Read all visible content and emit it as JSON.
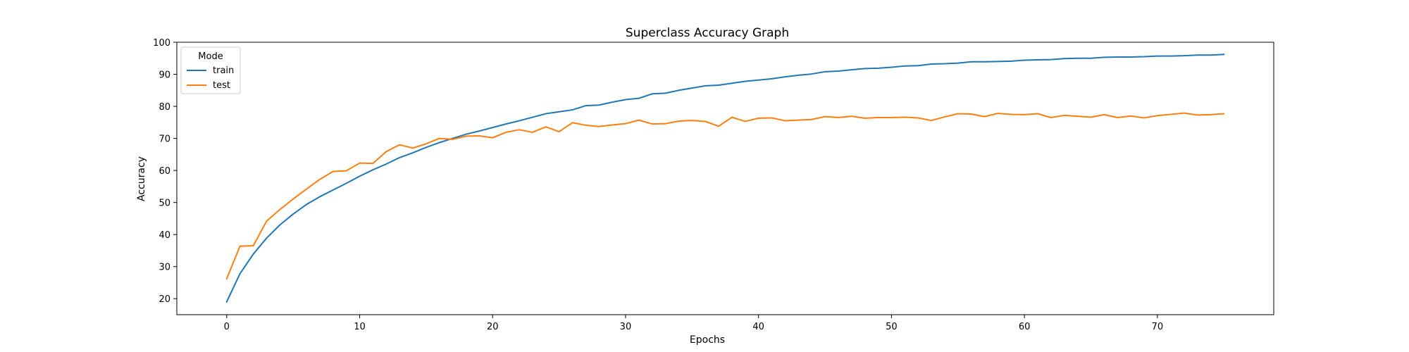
{
  "chart_data": {
    "type": "line",
    "title": "Superclass Accuracy Graph",
    "xlabel": "Epochs",
    "ylabel": "Accuracy",
    "xlim": [
      -3.75,
      78.75
    ],
    "ylim": [
      15,
      100
    ],
    "xticks": [
      0,
      10,
      20,
      30,
      40,
      50,
      60,
      70
    ],
    "yticks": [
      20,
      30,
      40,
      50,
      60,
      70,
      80,
      90,
      100
    ],
    "grid": false,
    "legend": {
      "title": "Mode",
      "placement": "top-left"
    },
    "x": [
      0,
      1,
      2,
      3,
      4,
      5,
      6,
      7,
      8,
      9,
      10,
      11,
      12,
      13,
      14,
      15,
      16,
      17,
      18,
      19,
      20,
      21,
      22,
      23,
      24,
      25,
      26,
      27,
      28,
      29,
      30,
      31,
      32,
      33,
      34,
      35,
      36,
      37,
      38,
      39,
      40,
      41,
      42,
      43,
      44,
      45,
      46,
      47,
      48,
      49,
      50,
      51,
      52,
      53,
      54,
      55,
      56,
      57,
      58,
      59,
      60,
      61,
      62,
      63,
      64,
      65,
      66,
      67,
      68,
      69,
      70,
      71,
      72,
      73,
      74,
      75
    ],
    "series": [
      {
        "name": "train",
        "color": "#1f77b4",
        "values": [
          19.0,
          27.8,
          33.9,
          38.9,
          43.0,
          46.4,
          49.4,
          51.8,
          53.9,
          56.0,
          58.2,
          60.2,
          62.0,
          64.0,
          65.5,
          67.2,
          68.7,
          70.0,
          71.3,
          72.3,
          73.4,
          74.5,
          75.5,
          76.6,
          77.7,
          78.3,
          78.9,
          80.2,
          80.4,
          81.3,
          82.1,
          82.5,
          83.9,
          84.1,
          85.0,
          85.7,
          86.4,
          86.6,
          87.2,
          87.8,
          88.2,
          88.6,
          89.2,
          89.7,
          90.1,
          90.8,
          91.0,
          91.4,
          91.8,
          91.9,
          92.2,
          92.6,
          92.7,
          93.2,
          93.3,
          93.5,
          93.9,
          93.9,
          94.0,
          94.1,
          94.4,
          94.5,
          94.6,
          94.9,
          95.0,
          95.0,
          95.3,
          95.4,
          95.4,
          95.5,
          95.7,
          95.7,
          95.8,
          96.0,
          96.0,
          96.2
        ]
      },
      {
        "name": "test",
        "color": "#ff7f0e",
        "values": [
          26.2,
          36.4,
          36.5,
          44.2,
          47.8,
          51.1,
          54.2,
          57.2,
          59.7,
          59.9,
          62.3,
          62.2,
          65.9,
          68.0,
          67.0,
          68.3,
          70.0,
          69.7,
          70.7,
          70.8,
          70.2,
          71.9,
          72.7,
          71.9,
          73.6,
          72.1,
          74.9,
          74.1,
          73.7,
          74.2,
          74.6,
          75.7,
          74.5,
          74.6,
          75.4,
          75.6,
          75.3,
          73.8,
          76.6,
          75.3,
          76.3,
          76.4,
          75.5,
          75.7,
          75.9,
          76.8,
          76.5,
          76.9,
          76.3,
          76.5,
          76.5,
          76.6,
          76.4,
          75.6,
          76.7,
          77.7,
          77.6,
          76.8,
          77.8,
          77.5,
          77.4,
          77.7,
          76.5,
          77.2,
          76.9,
          76.6,
          77.4,
          76.5,
          77.0,
          76.4,
          77.1,
          77.5,
          77.9,
          77.3,
          77.4,
          77.7
        ]
      }
    ]
  }
}
